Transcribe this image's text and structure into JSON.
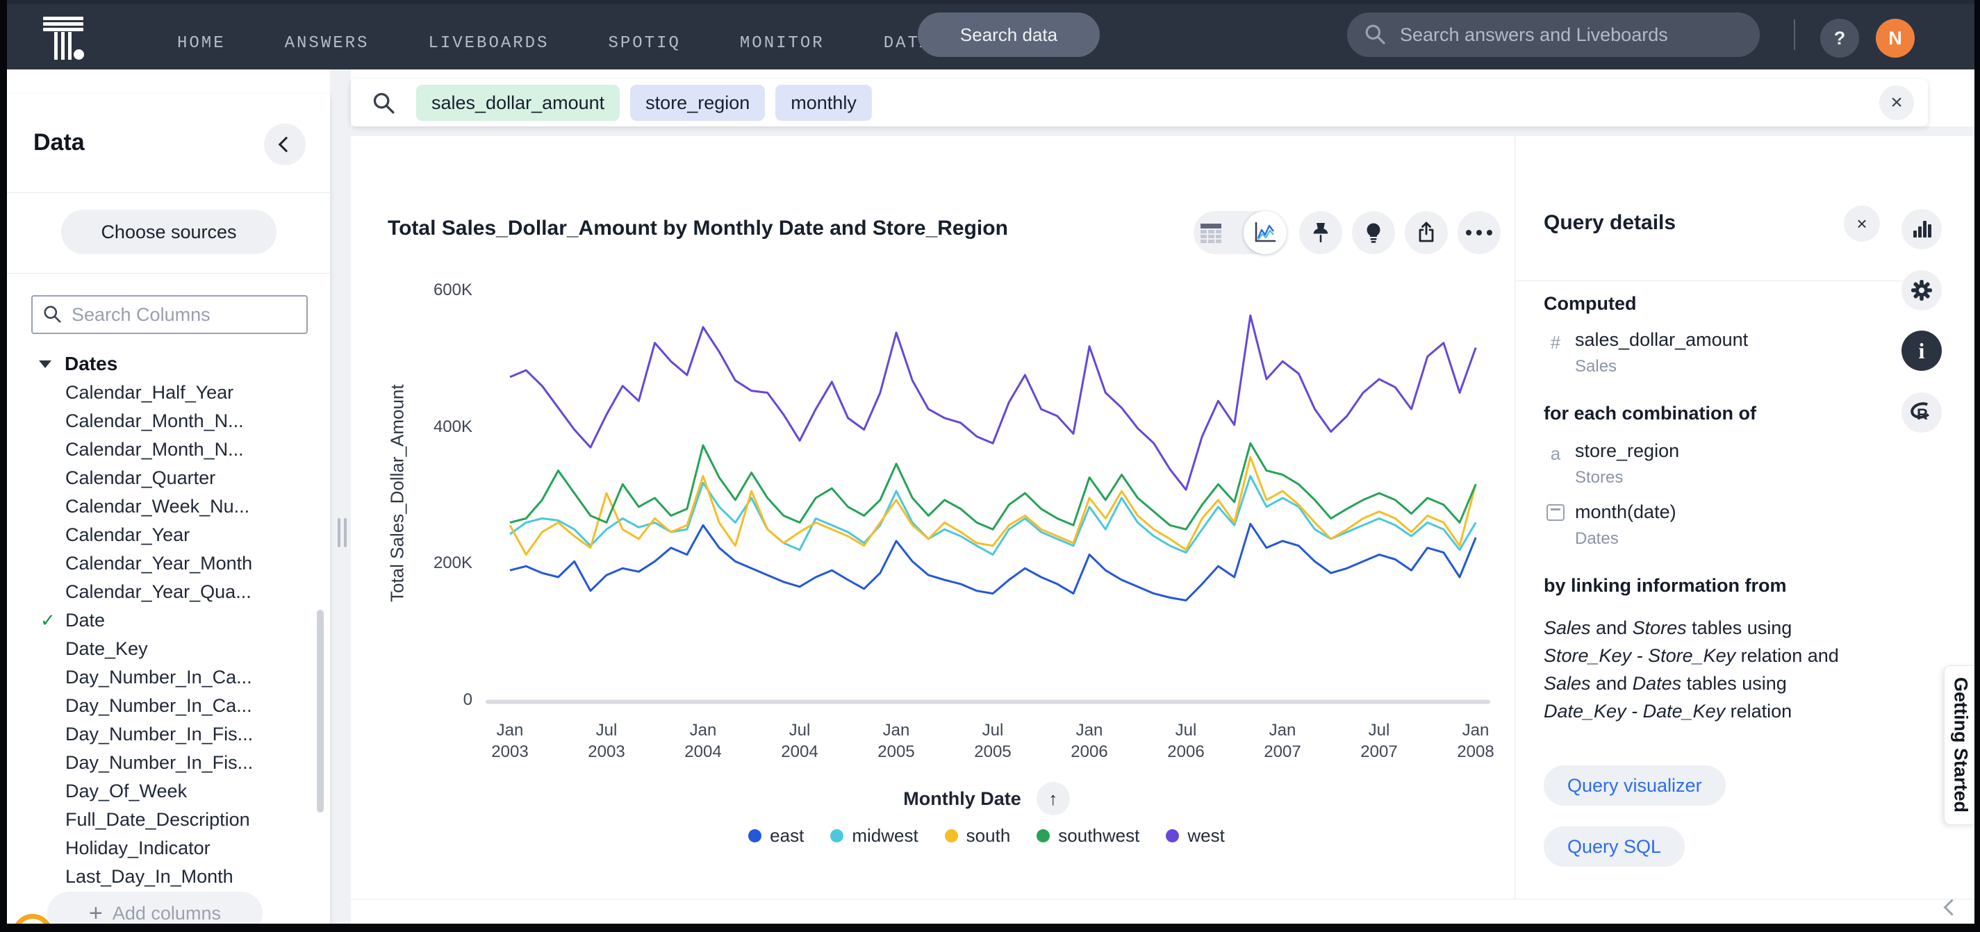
{
  "nav": {
    "items": [
      "HOME",
      "ANSWERS",
      "LIVEBOARDS",
      "SPOTIQ",
      "MONITOR",
      "DATA"
    ],
    "search_data_label": "Search data",
    "global_search_placeholder": "Search answers and Liveboards",
    "help_label": "?",
    "avatar_initial": "N"
  },
  "sidebar": {
    "title": "Data",
    "choose_sources_label": "Choose sources",
    "search_placeholder": "Search Columns",
    "group_label": "Dates",
    "columns": [
      {
        "label": "Calendar_Half_Year"
      },
      {
        "label": "Calendar_Month_N..."
      },
      {
        "label": "Calendar_Month_N..."
      },
      {
        "label": "Calendar_Quarter"
      },
      {
        "label": "Calendar_Week_Nu..."
      },
      {
        "label": "Calendar_Year"
      },
      {
        "label": "Calendar_Year_Month"
      },
      {
        "label": "Calendar_Year_Qua..."
      },
      {
        "label": "Date",
        "checked": true
      },
      {
        "label": "Date_Key"
      },
      {
        "label": "Day_Number_In_Ca..."
      },
      {
        "label": "Day_Number_In_Ca..."
      },
      {
        "label": "Day_Number_In_Fis..."
      },
      {
        "label": "Day_Number_In_Fis..."
      },
      {
        "label": "Day_Of_Week"
      },
      {
        "label": "Full_Date_Description"
      },
      {
        "label": "Holiday_Indicator"
      },
      {
        "label": "Last_Day_In_Month"
      }
    ],
    "add_columns_label": "Add columns"
  },
  "search_bar": {
    "tokens": [
      {
        "text": "sales_dollar_amount",
        "type": "measure"
      },
      {
        "text": "store_region",
        "type": "attribute"
      },
      {
        "text": "monthly",
        "type": "attribute"
      }
    ],
    "token_colors": {
      "measure": "#d7f1e3",
      "attribute": "#dde4f9"
    }
  },
  "answer": {
    "title": "Total Sales_Dollar_Amount by Monthly Date and Store_Region"
  },
  "chart_data": {
    "type": "line",
    "title": "Total Sales_Dollar_Amount by Monthly Date and Store_Region",
    "xlabel": "Monthly Date",
    "ylabel": "Total Sales_Dollar_Amount",
    "unit": "thousands (K) of Sales_Dollar_Amount",
    "ylim": [
      0,
      600
    ],
    "grid": false,
    "legend_position": "bottom",
    "x_interval": "month",
    "x_range": [
      "Jan 2003",
      "Jan 2008"
    ],
    "y_ticks": [
      {
        "label": "0",
        "value": 0
      },
      {
        "label": "200K",
        "value": 200
      },
      {
        "label": "400K",
        "value": 400
      },
      {
        "label": "600K",
        "value": 600
      }
    ],
    "x_ticks": [
      {
        "month": "Jan",
        "year": "2003"
      },
      {
        "month": "Jul",
        "year": "2003"
      },
      {
        "month": "Jan",
        "year": "2004"
      },
      {
        "month": "Jul",
        "year": "2004"
      },
      {
        "month": "Jan",
        "year": "2005"
      },
      {
        "month": "Jul",
        "year": "2005"
      },
      {
        "month": "Jan",
        "year": "2006"
      },
      {
        "month": "Jul",
        "year": "2006"
      },
      {
        "month": "Jan",
        "year": "2007"
      },
      {
        "month": "Jul",
        "year": "2007"
      },
      {
        "month": "Jan",
        "year": "2008"
      }
    ],
    "series": [
      {
        "name": "east",
        "color": "#2458d8",
        "values": [
          192,
          198,
          188,
          182,
          205,
          162,
          185,
          195,
          190,
          205,
          225,
          215,
          258,
          225,
          205,
          195,
          185,
          175,
          168,
          182,
          192,
          178,
          165,
          188,
          235,
          205,
          185,
          178,
          172,
          162,
          158,
          178,
          195,
          182,
          172,
          158,
          215,
          192,
          178,
          168,
          158,
          152,
          148,
          172,
          198,
          182,
          260,
          225,
          235,
          228,
          205,
          188,
          195,
          205,
          215,
          208,
          192,
          225,
          218,
          182,
          240
        ]
      },
      {
        "name": "midwest",
        "color": "#4cc7de",
        "values": [
          245,
          262,
          268,
          265,
          252,
          228,
          252,
          268,
          255,
          262,
          248,
          252,
          320,
          285,
          262,
          298,
          252,
          232,
          222,
          268,
          258,
          248,
          232,
          258,
          308,
          262,
          238,
          252,
          242,
          228,
          215,
          252,
          268,
          248,
          238,
          228,
          285,
          252,
          298,
          262,
          242,
          228,
          218,
          252,
          285,
          258,
          330,
          285,
          298,
          285,
          252,
          238,
          248,
          258,
          268,
          258,
          242,
          262,
          252,
          222,
          262
        ]
      },
      {
        "name": "south",
        "color": "#f5bd28",
        "values": [
          258,
          215,
          248,
          262,
          242,
          225,
          305,
          252,
          238,
          268,
          248,
          258,
          330,
          262,
          228,
          308,
          252,
          232,
          248,
          262,
          252,
          242,
          228,
          262,
          295,
          258,
          238,
          262,
          248,
          232,
          228,
          258,
          272,
          252,
          242,
          232,
          298,
          268,
          308,
          272,
          252,
          238,
          222,
          268,
          295,
          262,
          358,
          295,
          308,
          288,
          262,
          238,
          252,
          268,
          278,
          268,
          248,
          272,
          262,
          228,
          318
        ]
      },
      {
        "name": "southwest",
        "color": "#27a257",
        "values": [
          262,
          268,
          295,
          338,
          305,
          272,
          262,
          318,
          285,
          298,
          272,
          282,
          375,
          328,
          295,
          335,
          298,
          272,
          262,
          298,
          312,
          285,
          272,
          295,
          348,
          298,
          272,
          295,
          282,
          262,
          252,
          288,
          305,
          282,
          268,
          258,
          328,
          295,
          332,
          298,
          278,
          258,
          252,
          288,
          318,
          292,
          378,
          338,
          332,
          318,
          295,
          268,
          282,
          295,
          305,
          295,
          275,
          298,
          288,
          262,
          318
        ]
      },
      {
        "name": "west",
        "color": "#6747d9",
        "values": [
          475,
          485,
          462,
          430,
          398,
          372,
          420,
          462,
          440,
          525,
          498,
          478,
          548,
          512,
          470,
          455,
          452,
          420,
          382,
          428,
          468,
          415,
          398,
          452,
          540,
          470,
          428,
          415,
          408,
          388,
          378,
          438,
          478,
          428,
          418,
          392,
          520,
          452,
          430,
          400,
          378,
          340,
          310,
          388,
          440,
          405,
          565,
          472,
          498,
          480,
          428,
          395,
          418,
          452,
          472,
          460,
          428,
          505,
          525,
          452,
          518
        ]
      }
    ]
  },
  "query_details": {
    "title": "Query details",
    "close_label": "×",
    "sections": {
      "computed_label": "Computed",
      "computed": [
        {
          "icon": "hash",
          "name": "sales_dollar_amount",
          "source": "Sales"
        }
      ],
      "combination_label": "for each combination of",
      "combination": [
        {
          "icon": "letter-a",
          "name": "store_region",
          "source": "Stores"
        },
        {
          "icon": "calendar",
          "name": "month(date)",
          "source": "Dates"
        }
      ],
      "linking_label": "by linking information from",
      "linking_lines": [
        [
          {
            "t": "Sales",
            "i": true
          },
          {
            "t": " and ",
            "i": false
          },
          {
            "t": "Stores",
            "i": true
          },
          {
            "t": " tables using",
            "i": false
          }
        ],
        [
          {
            "t": "Store_Key - Store_Key",
            "i": true
          },
          {
            "t": " relation and",
            "i": false
          }
        ],
        [
          {
            "t": "Sales",
            "i": true
          },
          {
            "t": " and ",
            "i": false
          },
          {
            "t": "Dates",
            "i": true
          },
          {
            "t": " tables using",
            "i": false
          }
        ],
        [
          {
            "t": "Date_Key - Date_Key",
            "i": true
          },
          {
            "t": " relation",
            "i": false
          }
        ]
      ]
    },
    "buttons": [
      "Query visualizer",
      "Query SQL"
    ],
    "accent_blue": "#2e6bf0"
  },
  "getting_started": {
    "label": "Getting Started"
  }
}
